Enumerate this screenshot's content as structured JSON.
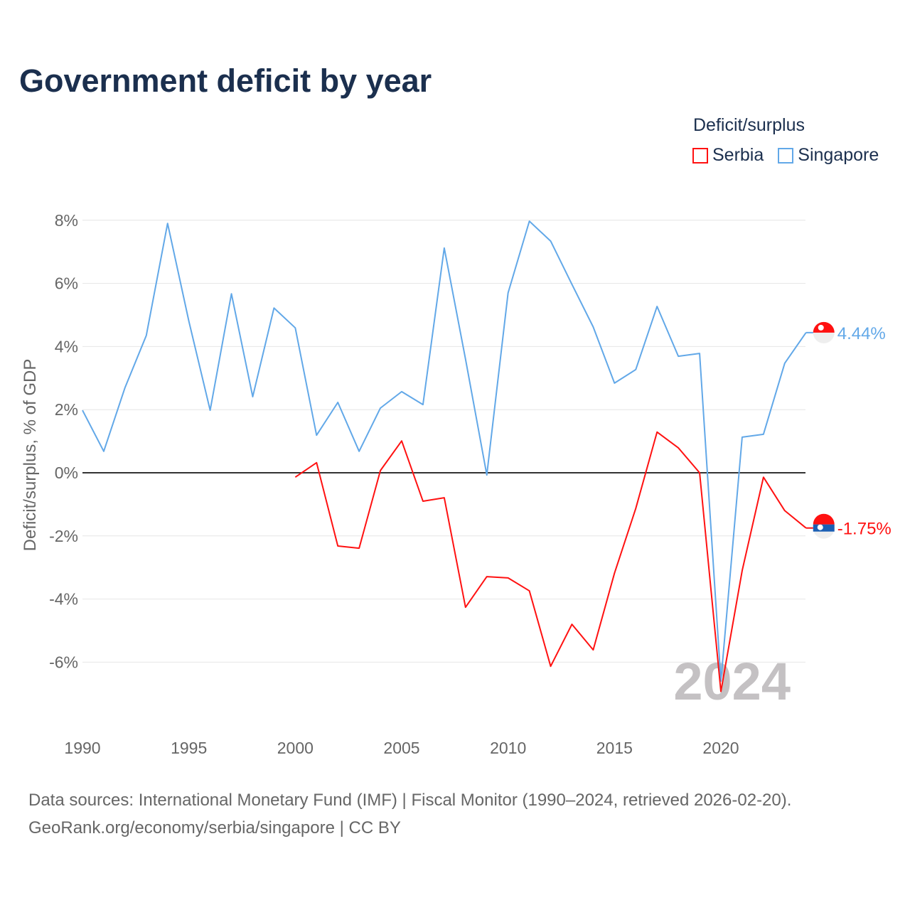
{
  "title": "Government deficit by year",
  "legend": {
    "title": "Deficit/surplus",
    "items": [
      {
        "label": "Serbia",
        "color": "#ff1111"
      },
      {
        "label": "Singapore",
        "color": "#62a8e8"
      }
    ]
  },
  "footer": {
    "line1": "Data sources: International Monetary Fund (IMF) | Fiscal Monitor (1990–2024, retrieved 2026-02-20).",
    "line2": "GeoRank.org/economy/serbia/singapore | CC BY"
  },
  "chart_data": {
    "type": "line",
    "ylabel": "Deficit/surplus, % of GDP",
    "xlabel": "",
    "xlim": [
      1990,
      2024
    ],
    "ylim": [
      -8,
      8
    ],
    "yticks": [
      8,
      6,
      4,
      2,
      0,
      -2,
      -4,
      -6
    ],
    "ytick_labels": [
      "8%",
      "6%",
      "4%",
      "2%",
      "0%",
      "-2%",
      "-4%",
      "-6%"
    ],
    "xticks": [
      1990,
      1995,
      2000,
      2005,
      2010,
      2015,
      2020
    ],
    "xtick_labels": [
      "1990",
      "1995",
      "2000",
      "2005",
      "2010",
      "2015",
      "2020"
    ],
    "year_watermark": "2024",
    "series": [
      {
        "name": "Singapore",
        "color": "#62a8e8",
        "end_label": "4.44%",
        "x": [
          1990,
          1991,
          1992,
          1993,
          1994,
          1995,
          1996,
          1997,
          1998,
          1999,
          2000,
          2001,
          2002,
          2003,
          2004,
          2005,
          2006,
          2007,
          2008,
          2009,
          2010,
          2011,
          2012,
          2013,
          2014,
          2015,
          2016,
          2017,
          2018,
          2019,
          2020,
          2021,
          2022,
          2023,
          2024
        ],
        "values": [
          1.98,
          0.68,
          2.7,
          4.35,
          7.9,
          4.8,
          1.98,
          5.67,
          2.41,
          5.22,
          4.59,
          1.19,
          2.23,
          0.68,
          2.05,
          2.57,
          2.16,
          7.12,
          3.6,
          -0.07,
          5.7,
          7.97,
          7.34,
          5.97,
          4.62,
          2.84,
          3.27,
          5.27,
          3.69,
          3.78,
          -6.6,
          1.13,
          1.22,
          3.47,
          4.44
        ]
      },
      {
        "name": "Serbia",
        "color": "#ff1111",
        "end_label": "-1.75%",
        "x": [
          2000,
          2001,
          2002,
          2003,
          2004,
          2005,
          2006,
          2007,
          2008,
          2009,
          2010,
          2011,
          2012,
          2013,
          2014,
          2015,
          2016,
          2017,
          2018,
          2019,
          2020,
          2021,
          2022,
          2023,
          2024
        ],
        "values": [
          -0.14,
          0.32,
          -2.32,
          -2.39,
          0.07,
          1.01,
          -0.9,
          -0.79,
          -4.26,
          -3.29,
          -3.33,
          -3.74,
          -6.13,
          -4.8,
          -5.61,
          -3.18,
          -1.13,
          1.29,
          0.79,
          0.0,
          -6.93,
          -3.1,
          -0.14,
          -1.2,
          -1.75
        ]
      }
    ]
  }
}
